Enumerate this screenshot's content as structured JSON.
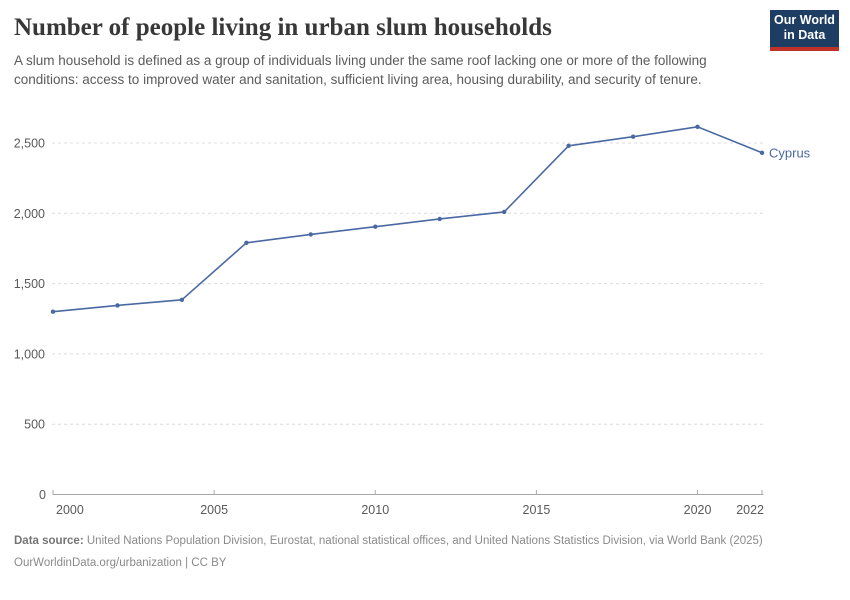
{
  "header": {
    "title": "Number of people living in urban slum households",
    "subtitle": "A slum household is defined as a group of individuals living under the same roof lacking one or more of the following conditions: access to improved water and sanitation, sufficient living area, housing durability, and security of tenure.",
    "logo": {
      "line1": "Our World",
      "line2": "in Data"
    }
  },
  "colors": {
    "series": "#4a69a3",
    "title": "#383838",
    "subtitle": "#5b5b5b",
    "axis_labels": "#5a5a5a",
    "gridline": "#dcdcdc",
    "axis_line": "#a8a8a8",
    "footer": "#8a8a8a",
    "logo_bg": "#1d3d63",
    "logo_accent": "#be3227"
  },
  "chart_data": {
    "type": "line",
    "title": "Number of people living in urban slum households",
    "xlabel": "",
    "ylabel": "",
    "x": [
      2000,
      2002,
      2004,
      2006,
      2008,
      2010,
      2012,
      2014,
      2016,
      2018,
      2020,
      2022
    ],
    "series": [
      {
        "name": "Cyprus",
        "values": [
          1300,
          1345,
          1385,
          1790,
          1850,
          1905,
          1960,
          2010,
          2480,
          2545,
          2615,
          2430
        ]
      }
    ],
    "xticks": [
      2000,
      2005,
      2010,
      2015,
      2020,
      2022
    ],
    "yticks": [
      0,
      500,
      1000,
      1500,
      2000,
      2500
    ],
    "xlim": [
      2000,
      2022
    ],
    "ylim": [
      0,
      2700
    ],
    "grid": "horizontal-dashed",
    "legend_position": "right-of-last-point"
  },
  "footer": {
    "source_label": "Data source:",
    "source_text": " United Nations Population Division, Eurostat, national statistical offices, and United Nations Statistics Division, via World Bank (2025)",
    "note_link": "OurWorldinData.org/urbanization",
    "note_sep": " | ",
    "note_license": "CC BY"
  }
}
